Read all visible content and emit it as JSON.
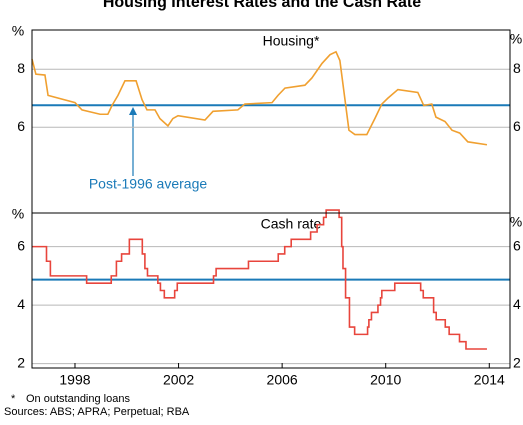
{
  "title": "Housing Interest Rates and the Cash Rate",
  "chart_data": [
    {
      "type": "line",
      "title": "Housing*",
      "y_label": "%",
      "x": [
        1996.84,
        1996.99,
        1997.34,
        1997.46,
        1998.5,
        1998.77,
        1999.47,
        1999.77,
        1999.93,
        2000.16,
        2000.43,
        2000.86,
        2001.09,
        2001.28,
        2001.59,
        2001.78,
        2002.09,
        2002.28,
        2002.48,
        2003.52,
        2003.83,
        2004.79,
        2005.06,
        2006.11,
        2006.34,
        2006.61,
        2007.38,
        2007.65,
        2008.04,
        2008.35,
        2008.58,
        2008.73,
        2008.92,
        2009.08,
        2009.31,
        2009.77,
        2010.08,
        2010.35,
        2010.58,
        2010.97,
        2011.74,
        2011.97,
        2012.28,
        2012.44,
        2012.79,
        2013.06,
        2013.36,
        2013.67,
        2014.41
      ],
      "series": [
        {
          "color": "#f0a030",
          "values": [
            8.35,
            7.83,
            7.8,
            7.1,
            6.85,
            6.6,
            6.45,
            6.45,
            6.75,
            7.1,
            7.6,
            7.6,
            6.95,
            6.6,
            6.6,
            6.3,
            6.05,
            6.3,
            6.4,
            6.25,
            6.55,
            6.6,
            6.8,
            6.85,
            7.1,
            7.35,
            7.45,
            7.7,
            8.2,
            8.5,
            8.6,
            8.3,
            7.0,
            5.9,
            5.75,
            5.75,
            6.3,
            6.8,
            7.0,
            7.3,
            7.2,
            6.75,
            6.8,
            6.35,
            6.2,
            5.9,
            5.8,
            5.5,
            5.4
          ]
        }
      ],
      "reference_line": {
        "value": 6.76,
        "color": "#1a7ab8",
        "label": "Post-1996 average"
      },
      "xlim": [
        1996.84,
        2015.3
      ],
      "ylim": [
        3.05,
        9.35
      ],
      "yticks": [
        6,
        8
      ],
      "grid": true
    },
    {
      "type": "line",
      "title": "Cash rate",
      "y_label": "%",
      "step": "post",
      "x": [
        1996.84,
        1997.4,
        1997.55,
        1998.95,
        1999.9,
        2000.1,
        2000.3,
        2000.6,
        2001.1,
        2001.2,
        2001.3,
        2001.7,
        2001.8,
        2001.95,
        2002.35,
        2002.45,
        2003.85,
        2003.95,
        2005.2,
        2006.35,
        2006.6,
        2006.85,
        2007.6,
        2007.85,
        2008.1,
        2008.2,
        2008.7,
        2008.8,
        2008.85,
        2008.95,
        2009.1,
        2009.3,
        2009.8,
        2009.85,
        2009.95,
        2010.2,
        2010.3,
        2010.35,
        2010.85,
        2011.85,
        2011.95,
        2012.35,
        2012.45,
        2012.8,
        2012.95,
        2013.35,
        2013.6,
        2014.41
      ],
      "series": [
        {
          "color": "#e8453c",
          "values": [
            6.0,
            5.5,
            5.0,
            4.75,
            5.0,
            5.5,
            5.75,
            6.25,
            5.75,
            5.25,
            5.0,
            4.75,
            4.5,
            4.25,
            4.5,
            4.75,
            5.0,
            5.25,
            5.5,
            5.75,
            6.0,
            6.25,
            6.5,
            6.75,
            7.0,
            7.25,
            7.0,
            6.0,
            5.25,
            4.25,
            3.25,
            3.0,
            3.25,
            3.5,
            3.75,
            4.0,
            4.25,
            4.5,
            4.75,
            4.5,
            4.25,
            3.75,
            3.5,
            3.25,
            3.0,
            2.75,
            2.5,
            2.5
          ]
        }
      ],
      "reference_line": {
        "value": 4.87,
        "color": "#1a7ab8"
      },
      "xlim": [
        1996.84,
        2015.3
      ],
      "ylim": [
        1.85,
        7.15
      ],
      "yticks": [
        2,
        4,
        6
      ],
      "grid": true,
      "xticks": [
        {
          "value": 1998.5,
          "label": "1998"
        },
        {
          "value": 2002.5,
          "label": "2002"
        },
        {
          "value": 2006.5,
          "label": "2006"
        },
        {
          "value": 2010.5,
          "label": "2010"
        },
        {
          "value": 2014.5,
          "label": "2014"
        }
      ]
    }
  ],
  "footnote": {
    "marker": "*",
    "text": "On outstanding loans"
  },
  "sources": "Sources: ABS; APRA; Perpetual; RBA"
}
